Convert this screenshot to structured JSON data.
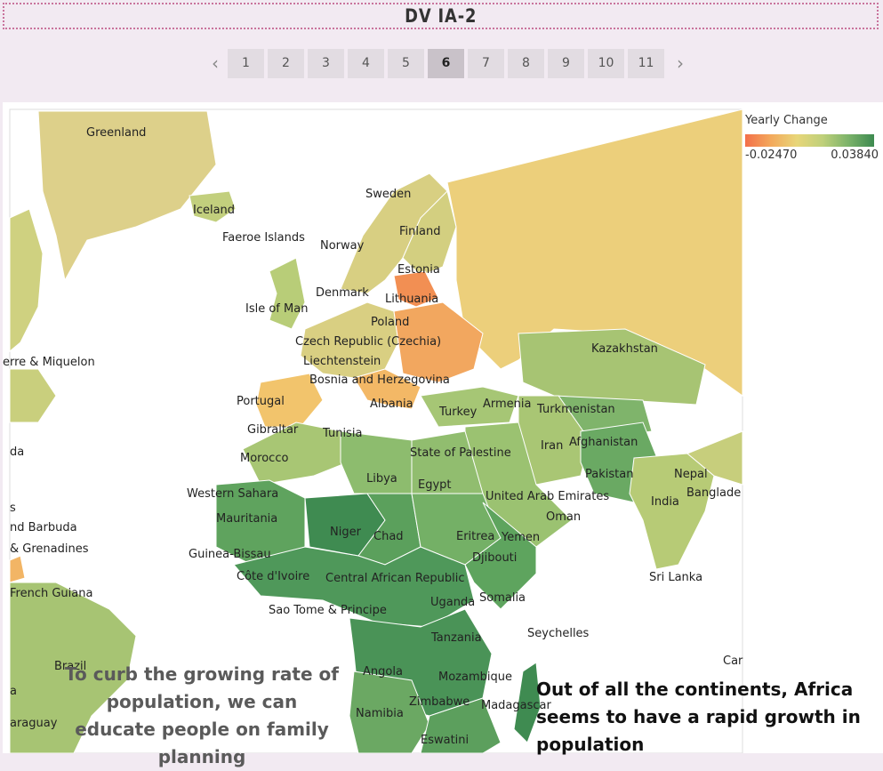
{
  "header": {
    "title": "DV IA-2"
  },
  "pager": {
    "prev_icon": "chevron-left-icon",
    "next_icon": "chevron-right-icon",
    "pages": [
      "1",
      "2",
      "3",
      "4",
      "5",
      "6",
      "7",
      "8",
      "9",
      "10",
      "11"
    ],
    "active_page": "6"
  },
  "legend": {
    "title": "Yearly Change",
    "min": "-0.02470",
    "max": "0.03840"
  },
  "map": {
    "labels": [
      "Greenland",
      "Iceland",
      "Faeroe Islands",
      "Norway",
      "Sweden",
      "Finland",
      "Estonia",
      "Denmark",
      "Lithuania",
      "Isle of Man",
      "Poland",
      "Czech Republic (Czechia)",
      "Liechtenstein",
      "Bosnia and Herzegovina",
      "Portugal",
      "Albania",
      "Turkey",
      "Armenia",
      "Turkmenistan",
      "Kazakhstan",
      "Gibraltar",
      "Tunisia",
      "Morocco",
      "Iran",
      "Afghanistan",
      "State of Palestine",
      "Libya",
      "Egypt",
      "Pakistan",
      "Nepal",
      "Banglade",
      "Western Sahara",
      "United Arab Emirates",
      "India",
      "Mauritania",
      "Oman",
      "Niger",
      "Chad",
      "Eritrea",
      "Yemen",
      "Guinea-Bissau",
      "Djibouti",
      "Côte d'Ivoire",
      "Central African Republic",
      "Somalia",
      "Sri Lanka",
      "Uganda",
      "Sao Tome & Principe",
      "Seychelles",
      "Tanzania",
      "Angola",
      "Mozambique",
      "Madagascar",
      "Zimbabwe",
      "Namibia",
      "Eswatini",
      "Brazil",
      "French Guiana",
      "erre & Miquelon",
      "da",
      "s",
      "nd Barbuda",
      "& Grenadines",
      "araguay",
      "a",
      "Car"
    ]
  },
  "annotations": {
    "left": "To curb the growing rate of population, we can educate people on family planning",
    "right": "Out of all the continents, Africa seems to have a rapid growth in population"
  }
}
